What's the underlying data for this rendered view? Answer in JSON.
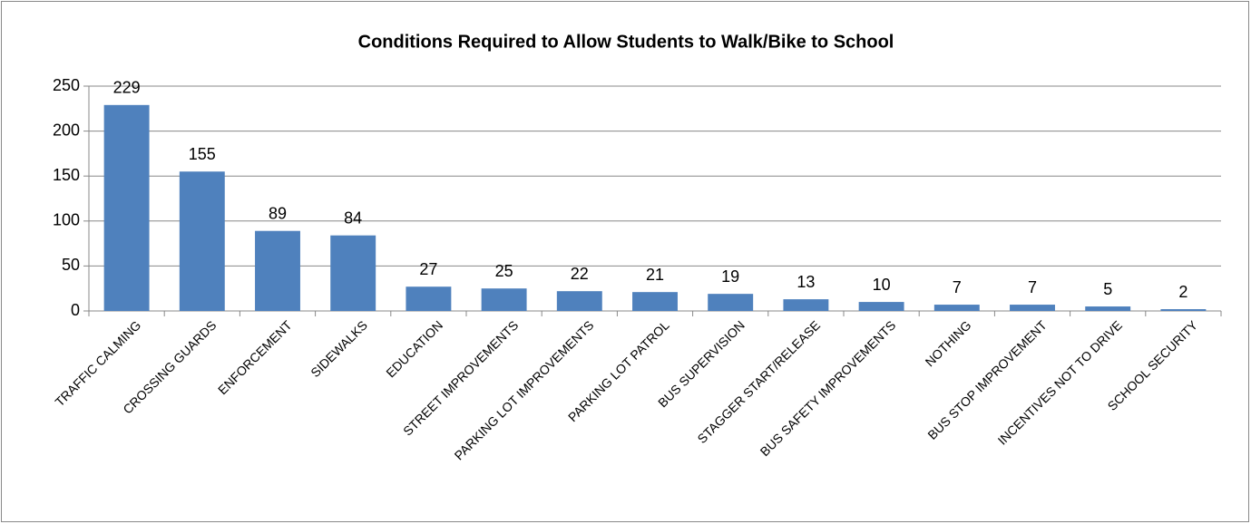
{
  "chart_data": {
    "type": "bar",
    "title": "Conditions Required to Allow Students to Walk/Bike to School",
    "categories": [
      "TRAFFIC CALMING",
      "CROSSING GUARDS",
      "ENFORCEMENT",
      "SIDEWALKS",
      "EDUCATION",
      "STREET IMPROVEMENTS",
      "PARKING LOT IMPROVEMENTS",
      "PARKING LOT PATROL",
      "BUS SUPERVISION",
      "STAGGER START/RELEASE",
      "BUS SAFETY IMPROVEMENTS",
      "NOTHING",
      "BUS STOP IMPROVEMENT",
      "INCENTIVES NOT TO DRIVE",
      "SCHOOL SECURITY"
    ],
    "values": [
      229,
      155,
      89,
      84,
      27,
      25,
      22,
      21,
      19,
      13,
      10,
      7,
      7,
      5,
      2
    ],
    "color": "#4f81bd",
    "ylim": [
      0,
      250
    ],
    "yticks": [
      0,
      50,
      100,
      150,
      200,
      250
    ],
    "grid": true
  }
}
